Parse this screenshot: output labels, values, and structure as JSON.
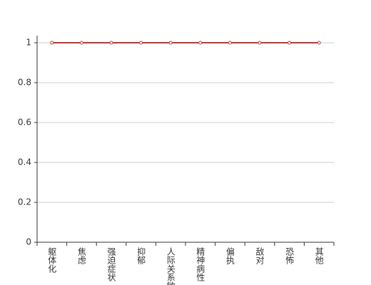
{
  "chart_data": {
    "type": "line",
    "categories": [
      "躯体化",
      "焦虑",
      "强迫症状",
      "抑郁",
      "人际关系敏感",
      "精神病性",
      "偏执",
      "敌对",
      "恐怖",
      "其他"
    ],
    "values": [
      1,
      1,
      1,
      1,
      1,
      1,
      1,
      1,
      1,
      1
    ],
    "color": "#c23531",
    "ylim": [
      0,
      1
    ],
    "yticks": [
      0,
      0.2,
      0.4,
      0.6,
      0.8,
      1
    ],
    "grid": true
  }
}
